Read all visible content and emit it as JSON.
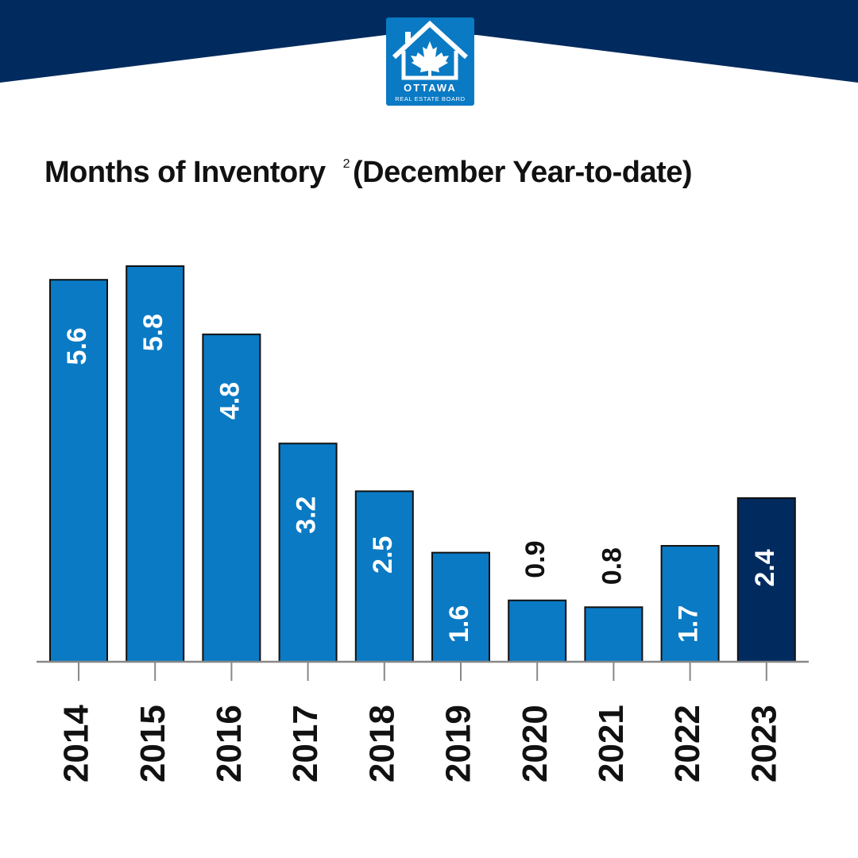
{
  "header": {
    "logo_line1": "OTTAWA",
    "logo_line2": "REAL ESTATE BOARD",
    "banner_color": "#012b5e",
    "logo_color": "#0a7ac4"
  },
  "chart_data": {
    "type": "bar",
    "title": "Months of Inventory",
    "title_footnote": "2",
    "subtitle": "(December Year-to-date)",
    "categories": [
      "2014",
      "2015",
      "2016",
      "2017",
      "2018",
      "2019",
      "2020",
      "2021",
      "2022",
      "2023"
    ],
    "values": [
      5.6,
      5.8,
      4.8,
      3.2,
      2.5,
      1.6,
      0.9,
      0.8,
      1.7,
      2.4
    ],
    "value_labels": [
      "5.6",
      "5.8",
      "4.8",
      "3.2",
      "2.5",
      "1.6",
      "0.9",
      "0.8",
      "1.7",
      "2.4"
    ],
    "highlight_category": "2023",
    "colors": {
      "bar": "#0a7ac4",
      "highlight": "#012b5e",
      "outline": "#111111",
      "axis": "#888888"
    },
    "ylim": [
      0,
      5.8
    ],
    "grid": false,
    "legend": "none"
  }
}
